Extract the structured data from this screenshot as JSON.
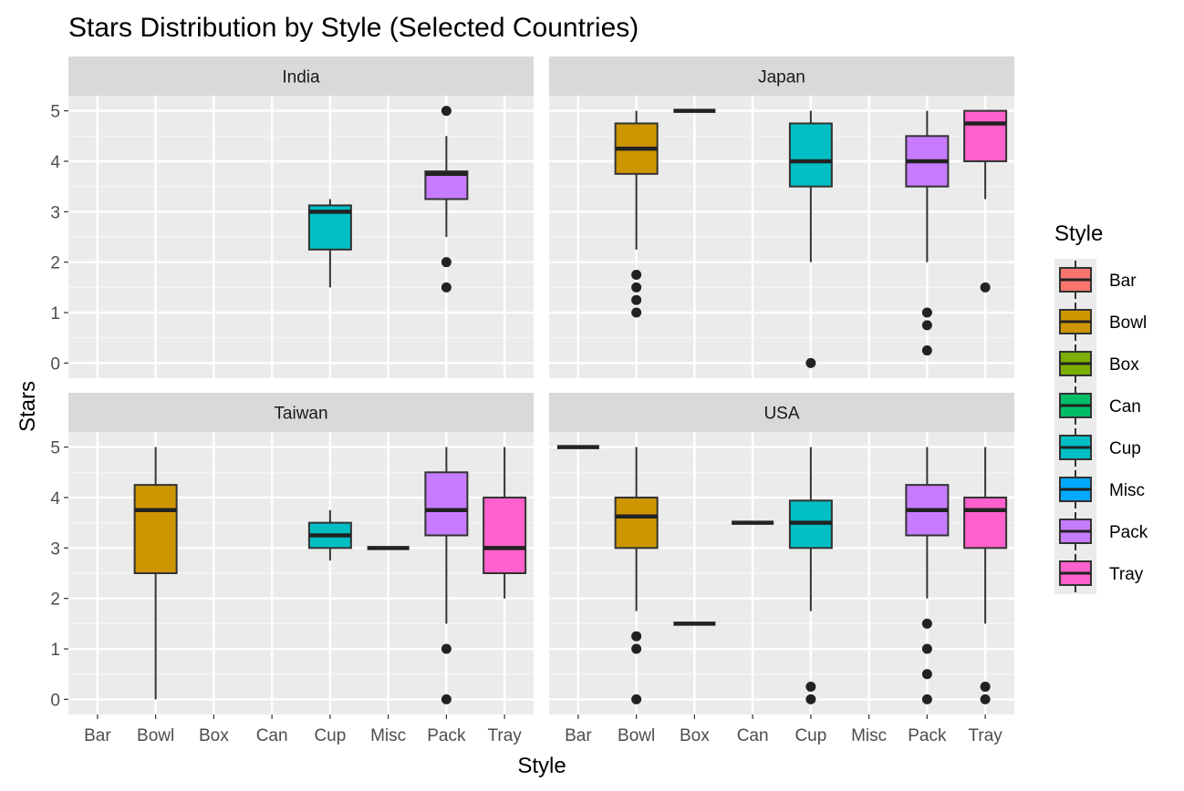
{
  "chart_data": {
    "type": "boxplot",
    "title": "Stars Distribution by Style (Selected Countries)",
    "xlabel": "Style",
    "ylabel": "Stars",
    "ylim": [
      -0.3,
      5.3
    ],
    "yticks": [
      0,
      1,
      2,
      3,
      4,
      5
    ],
    "categories": [
      "Bar",
      "Bowl",
      "Box",
      "Can",
      "Cup",
      "Misc",
      "Pack",
      "Tray"
    ],
    "colors": {
      "Bar": "#F8766D",
      "Bowl": "#CD9600",
      "Box": "#7CAE00",
      "Can": "#00BE67",
      "Cup": "#00BFC4",
      "Misc": "#00A9FF",
      "Pack": "#C77CFF",
      "Tray": "#FF61CC"
    },
    "legend": {
      "title": "Style",
      "position": "right",
      "items": [
        "Bar",
        "Bowl",
        "Box",
        "Can",
        "Cup",
        "Misc",
        "Pack",
        "Tray"
      ]
    },
    "grid": true,
    "facets": [
      {
        "name": "India",
        "boxes": [
          {
            "style": "Cup",
            "q1": 2.25,
            "median": 3.0,
            "q3": 3.125,
            "low": 1.5,
            "high": 3.25,
            "outliers": []
          },
          {
            "style": "Pack",
            "q1": 3.25,
            "median": 3.75,
            "q3": 3.8,
            "low": 2.5,
            "high": 4.5,
            "outliers": [
              5.0,
              2.0,
              1.5
            ]
          }
        ]
      },
      {
        "name": "Japan",
        "boxes": [
          {
            "style": "Bowl",
            "q1": 3.75,
            "median": 4.25,
            "q3": 4.75,
            "low": 2.25,
            "high": 5.0,
            "outliers": [
              1.75,
              1.5,
              1.25,
              1.0
            ]
          },
          {
            "style": "Box",
            "q1": 5.0,
            "median": 5.0,
            "q3": 5.0,
            "low": 5.0,
            "high": 5.0,
            "outliers": []
          },
          {
            "style": "Cup",
            "q1": 3.5,
            "median": 4.0,
            "q3": 4.75,
            "low": 2.0,
            "high": 5.0,
            "outliers": [
              0.0
            ]
          },
          {
            "style": "Pack",
            "q1": 3.5,
            "median": 4.0,
            "q3": 4.5,
            "low": 2.0,
            "high": 5.0,
            "outliers": [
              1.0,
              0.75,
              0.25
            ]
          },
          {
            "style": "Tray",
            "q1": 4.0,
            "median": 4.75,
            "q3": 5.0,
            "low": 3.25,
            "high": 5.0,
            "outliers": [
              1.5
            ]
          }
        ]
      },
      {
        "name": "Taiwan",
        "boxes": [
          {
            "style": "Bowl",
            "q1": 2.5,
            "median": 3.75,
            "q3": 4.25,
            "low": 0.0,
            "high": 5.0,
            "outliers": []
          },
          {
            "style": "Cup",
            "q1": 3.0,
            "median": 3.25,
            "q3": 3.5,
            "low": 2.75,
            "high": 3.75,
            "outliers": []
          },
          {
            "style": "Misc",
            "q1": 3.0,
            "median": 3.0,
            "q3": 3.0,
            "low": 3.0,
            "high": 3.0,
            "outliers": []
          },
          {
            "style": "Pack",
            "q1": 3.25,
            "median": 3.75,
            "q3": 4.5,
            "low": 1.5,
            "high": 5.0,
            "outliers": [
              1.0,
              0.0
            ]
          },
          {
            "style": "Tray",
            "q1": 2.5,
            "median": 3.0,
            "q3": 4.0,
            "low": 2.0,
            "high": 5.0,
            "outliers": []
          }
        ]
      },
      {
        "name": "USA",
        "boxes": [
          {
            "style": "Bar",
            "q1": 5.0,
            "median": 5.0,
            "q3": 5.0,
            "low": 5.0,
            "high": 5.0,
            "outliers": []
          },
          {
            "style": "Bowl",
            "q1": 3.0,
            "median": 3.625,
            "q3": 4.0,
            "low": 1.75,
            "high": 5.0,
            "outliers": [
              1.25,
              1.0,
              0.0
            ]
          },
          {
            "style": "Box",
            "q1": 1.5,
            "median": 1.5,
            "q3": 1.5,
            "low": 1.5,
            "high": 1.5,
            "outliers": []
          },
          {
            "style": "Can",
            "q1": 3.5,
            "median": 3.5,
            "q3": 3.5,
            "low": 3.5,
            "high": 3.5,
            "outliers": []
          },
          {
            "style": "Cup",
            "q1": 3.0,
            "median": 3.5,
            "q3": 3.94,
            "low": 1.75,
            "high": 5.0,
            "outliers": [
              0.25,
              0.0
            ]
          },
          {
            "style": "Pack",
            "q1": 3.25,
            "median": 3.75,
            "q3": 4.25,
            "low": 2.0,
            "high": 5.0,
            "outliers": [
              1.5,
              1.0,
              0.5,
              0.0
            ]
          },
          {
            "style": "Tray",
            "q1": 3.0,
            "median": 3.75,
            "q3": 4.0,
            "low": 1.5,
            "high": 5.0,
            "outliers": [
              0.25,
              0.0
            ]
          }
        ]
      }
    ]
  }
}
